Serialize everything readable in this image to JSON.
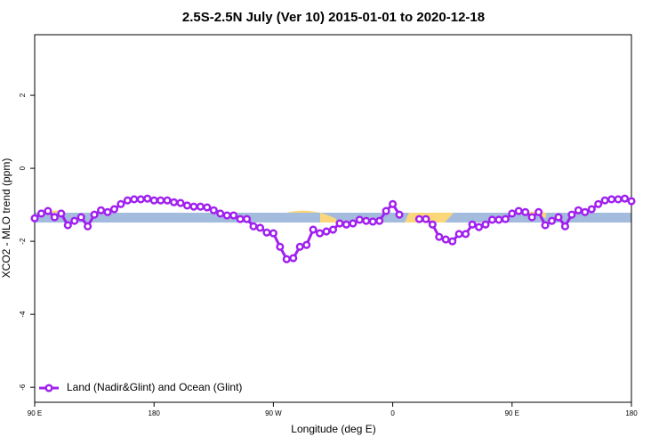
{
  "chart_data": {
    "type": "line",
    "title": "2.5S-2.5N July (Ver 10)   2015-01-01 to 2020-12-18",
    "x_label": "Longitude (deg E)",
    "y_label": "XCO2 - MLO trend (ppm)",
    "x": [
      90,
      95,
      100,
      105,
      110,
      115,
      120,
      125,
      130,
      135,
      140,
      145,
      150,
      155,
      160,
      165,
      170,
      175,
      180,
      185,
      190,
      195,
      200,
      205,
      210,
      215,
      220,
      225,
      230,
      235,
      240,
      245,
      250,
      255,
      260,
      265,
      270,
      275,
      280,
      285,
      290,
      295,
      300,
      305,
      310,
      315,
      320,
      325,
      330,
      335,
      340,
      345,
      350,
      355,
      360,
      365,
      370,
      375,
      380,
      385,
      390,
      395,
      400,
      405,
      410,
      415,
      420,
      425,
      430,
      435,
      440,
      445,
      450,
      455,
      460,
      465,
      470,
      475,
      480,
      485,
      490,
      495,
      500,
      505,
      510,
      515,
      520,
      525,
      530,
      535,
      540
    ],
    "series": [
      {
        "name": "Land (Nadir&Glint) and Ocean (Glint)",
        "color": "#a020f0",
        "values": [
          -1.37,
          -1.24,
          -1.17,
          -1.34,
          -1.24,
          -1.56,
          -1.44,
          -1.34,
          -1.59,
          -1.27,
          -1.15,
          -1.2,
          -1.12,
          -0.98,
          -0.88,
          -0.85,
          -0.85,
          -0.83,
          -0.88,
          -0.88,
          -0.88,
          -0.93,
          -0.95,
          -1.02,
          -1.05,
          -1.05,
          -1.07,
          -1.15,
          -1.24,
          -1.29,
          -1.29,
          -1.39,
          -1.39,
          -1.59,
          -1.63,
          -1.76,
          -1.78,
          -2.15,
          -2.49,
          -2.46,
          -2.15,
          -2.1,
          -1.68,
          -1.78,
          -1.73,
          -1.68,
          -1.51,
          -1.54,
          -1.51,
          -1.41,
          -1.44,
          -1.46,
          -1.44,
          -1.17,
          -0.98,
          -1.27,
          null,
          null,
          -1.39,
          -1.39,
          -1.54,
          -1.88,
          -1.95,
          -2.0,
          -1.8,
          -1.8,
          -1.54,
          -1.61,
          -1.54,
          -1.41,
          -1.41,
          -1.39,
          -1.24,
          -1.17,
          -1.2,
          -1.34,
          -1.2,
          -1.56,
          -1.44,
          -1.34,
          -1.59,
          -1.27,
          -1.15,
          -1.2,
          -1.12,
          -0.98,
          -0.88,
          -0.85,
          -0.85,
          -0.83,
          -0.9
        ]
      }
    ],
    "xlim": [
      90,
      540
    ],
    "xticks": [
      {
        "value": 90,
        "label": "90 E"
      },
      180,
      {
        "value": 270,
        "label": "90 W"
      },
      {
        "value": 360,
        "label": "0"
      },
      {
        "value": 450,
        "label": "90 E"
      },
      {
        "value": 540,
        "label": "180"
      }
    ],
    "ylim": [
      -6.41,
      3.66
    ],
    "yticks": [
      2,
      0,
      -2,
      -4,
      -6
    ],
    "legend": "bottom-left"
  }
}
